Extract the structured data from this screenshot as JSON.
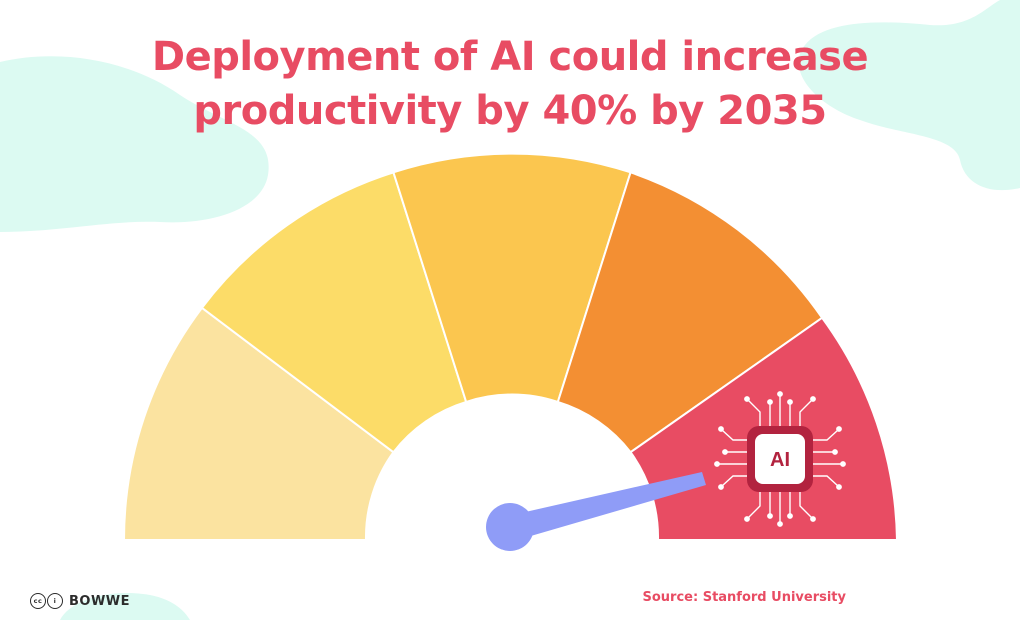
{
  "title": {
    "line1": "Deployment of AI could increase",
    "line2": "productivity by 40% by 2035"
  },
  "gauge": {
    "segments": [
      {
        "name": "segment-1",
        "color": "#fbe3a0"
      },
      {
        "name": "segment-2",
        "color": "#fcdc68"
      },
      {
        "name": "segment-3",
        "color": "#fbc64f"
      },
      {
        "name": "segment-4",
        "color": "#f38f33"
      },
      {
        "name": "segment-5",
        "color": "#e84c63"
      }
    ],
    "needle_color": "#8f9cf7",
    "chip_label": "AI",
    "chip_color": "#b2233f"
  },
  "footer": {
    "license_icons": [
      "cc",
      "i"
    ],
    "brand": "BOWWE",
    "source": "Source: Stanford University"
  },
  "colors": {
    "accent": "#e84c63",
    "blob": "#dcfaf2"
  }
}
